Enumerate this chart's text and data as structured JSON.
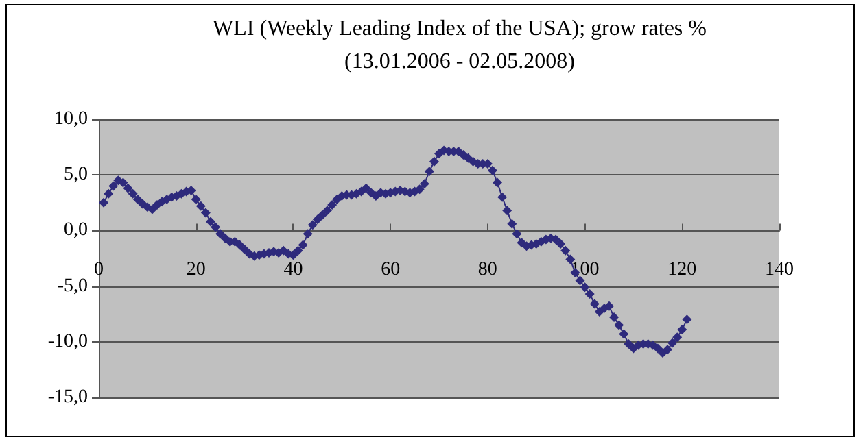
{
  "chart_data": {
    "type": "line",
    "title": "WLI (Weekly Leading Index of the USA); grow rates %",
    "subtitle": "(13.01.2006 - 02.05.2008)",
    "x": [
      1,
      2,
      3,
      4,
      5,
      6,
      7,
      8,
      9,
      10,
      11,
      12,
      13,
      14,
      15,
      16,
      17,
      18,
      19,
      20,
      21,
      22,
      23,
      24,
      25,
      26,
      27,
      28,
      29,
      30,
      31,
      32,
      33,
      34,
      35,
      36,
      37,
      38,
      39,
      40,
      41,
      42,
      43,
      44,
      45,
      46,
      47,
      48,
      49,
      50,
      51,
      52,
      53,
      54,
      55,
      56,
      57,
      58,
      59,
      60,
      61,
      62,
      63,
      64,
      65,
      66,
      67,
      68,
      69,
      70,
      71,
      72,
      73,
      74,
      75,
      76,
      77,
      78,
      79,
      80,
      81,
      82,
      83,
      84,
      85,
      86,
      87,
      88,
      89,
      90,
      91,
      92,
      93,
      94,
      95,
      96,
      97,
      98,
      99,
      100,
      101,
      102,
      103,
      104,
      105,
      106,
      107,
      108,
      109,
      110,
      111,
      112,
      113,
      114,
      115,
      116,
      117,
      118,
      119,
      120,
      121
    ],
    "series": [
      {
        "color": "#2e2a7c",
        "values": [
          2.5,
          3.3,
          4.0,
          4.5,
          4.3,
          3.8,
          3.3,
          2.8,
          2.4,
          2.1,
          1.9,
          2.3,
          2.6,
          2.8,
          3.0,
          3.1,
          3.3,
          3.5,
          3.6,
          2.8,
          2.2,
          1.6,
          0.8,
          0.3,
          -0.3,
          -0.7,
          -1.0,
          -1.0,
          -1.3,
          -1.7,
          -2.1,
          -2.3,
          -2.2,
          -2.1,
          -2.0,
          -1.9,
          -2.0,
          -1.8,
          -2.1,
          -2.2,
          -1.8,
          -1.3,
          -0.3,
          0.5,
          1.0,
          1.4,
          1.8,
          2.3,
          2.8,
          3.1,
          3.2,
          3.2,
          3.3,
          3.5,
          3.8,
          3.4,
          3.1,
          3.4,
          3.3,
          3.4,
          3.5,
          3.6,
          3.5,
          3.4,
          3.5,
          3.7,
          4.2,
          5.3,
          6.2,
          6.9,
          7.2,
          7.1,
          7.1,
          7.1,
          6.8,
          6.5,
          6.2,
          6.0,
          6.0,
          6.0,
          5.4,
          4.3,
          3.0,
          1.8,
          0.6,
          -0.3,
          -1.1,
          -1.4,
          -1.3,
          -1.2,
          -1.0,
          -0.8,
          -0.7,
          -0.8,
          -1.2,
          -1.8,
          -2.6,
          -3.8,
          -4.5,
          -5.1,
          -5.7,
          -6.6,
          -7.3,
          -7.0,
          -6.8,
          -7.8,
          -8.5,
          -9.3,
          -10.2,
          -10.6,
          -10.3,
          -10.2,
          -10.2,
          -10.3,
          -10.6,
          -11.0,
          -10.7,
          -10.1,
          -9.6,
          -8.9,
          -8.0
        ]
      }
    ],
    "xlim": [
      0,
      140
    ],
    "xticks": [
      0,
      20,
      40,
      60,
      80,
      100,
      120,
      140
    ],
    "ylim": [
      -15,
      10
    ],
    "yticks": [
      {
        "value": -15,
        "label": "-15,0"
      },
      {
        "value": -10,
        "label": "-10,0"
      },
      {
        "value": -5,
        "label": "-5,0"
      },
      {
        "value": 0,
        "label": "0,0"
      },
      {
        "value": 5,
        "label": "5,0"
      },
      {
        "value": 10,
        "label": "10,0"
      }
    ],
    "grid": "y",
    "marker": "diamond",
    "line_style": "solid"
  }
}
